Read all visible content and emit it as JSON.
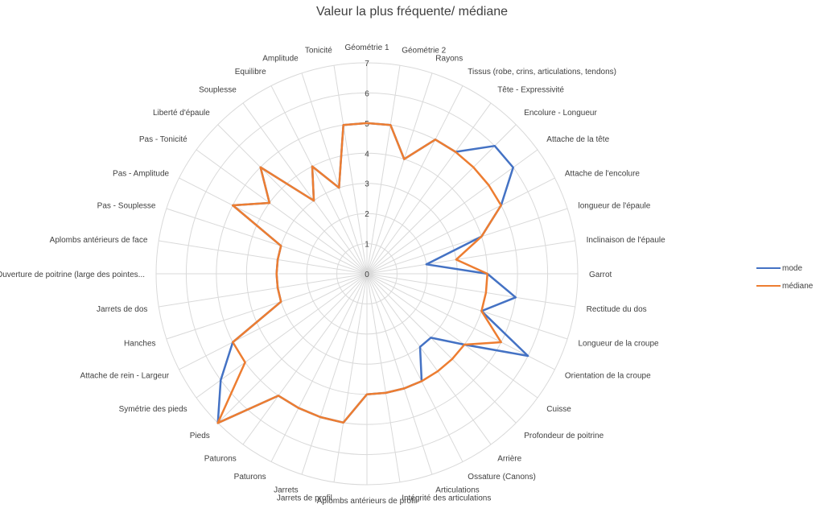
{
  "chart_data": {
    "type": "radar",
    "title": "Valeur la plus fréquente/ médiane",
    "rmin": 0,
    "rmax": 7,
    "ticks": [
      "0",
      "1",
      "2",
      "3",
      "4",
      "5",
      "6",
      "7"
    ],
    "categories": [
      "Géométrie 1",
      "Géométrie 2",
      "Rayons",
      "Tissus (robe, crins, articulations, tendons)",
      "Tête - Expressivité",
      "Encolure - Longueur",
      "Attache de la tête",
      "Attache de l'encolure",
      "longueur de l'épaule",
      "Inclinaison de l'épaule",
      "Garrot",
      "Rectitude du dos",
      "Longueur de la croupe",
      "Orientation de la croupe",
      "Cuisse",
      "Profondeur de poitrine",
      "Arrière",
      "Ossature (Canons)",
      "Articulations",
      "Intégrité des articulations",
      "Aplombs antérieurs de profil",
      "Jarrets de profil",
      "Jarrets",
      "Paturons",
      "Paturons",
      "Pieds",
      "Symétrie des pieds",
      "Attache de rein - Largeur",
      "Hanches",
      "Jarrets de dos",
      "Ouverture de poitrine (large des pointes...",
      "Aplombs antérieurs de face",
      "Pas - Souplesse",
      "Pas - Amplitude",
      "Pas - Tonicité",
      "Liberté d'épaule",
      "Souplesse",
      "Equilibre",
      "Amplitude",
      "Tonicité"
    ],
    "series": [
      {
        "name": "mode",
        "color": "#4472C4",
        "values": [
          5,
          5,
          4,
          5,
          5,
          6,
          6,
          5,
          4,
          2,
          4,
          5,
          4,
          6,
          4,
          3,
          3,
          4,
          4,
          4,
          4,
          5,
          5,
          5,
          5,
          7,
          6,
          5,
          3,
          3,
          3,
          3,
          3,
          5,
          4,
          5,
          3,
          4,
          3,
          5
        ]
      },
      {
        "name": "médiane",
        "color": "#ED7D31",
        "values": [
          5,
          5,
          4,
          5,
          5,
          5,
          5,
          5,
          4,
          3,
          4,
          4,
          4,
          5,
          4,
          4,
          4,
          4,
          4,
          4,
          4,
          5,
          5,
          5,
          5,
          7,
          5,
          5,
          3,
          3,
          3,
          3,
          3,
          5,
          4,
          5,
          3,
          4,
          3,
          5
        ]
      }
    ],
    "legend": "right"
  }
}
